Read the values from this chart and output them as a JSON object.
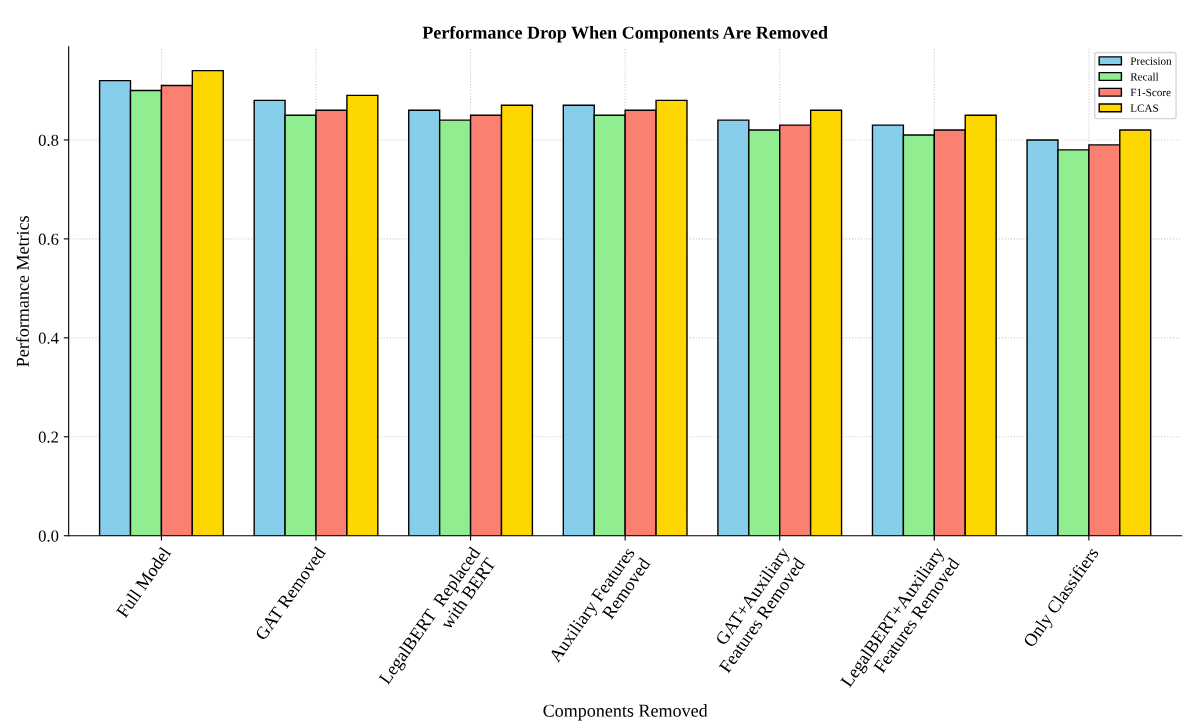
{
  "chart_data": {
    "type": "bar",
    "title": "Performance Drop When Components Are Removed",
    "xlabel": "Components Removed",
    "ylabel": "Performance Metrics",
    "categories": [
      "Full Model",
      "GAT Removed",
      "LegalBERT  Replaced\nwith BERT",
      "Auxiliary Features\nRemoved",
      "GAT+Auxiliary\nFeatures Removed",
      "LegalBERT+Auxiliary\nFeatures Removed",
      "Only Classifiers"
    ],
    "series": [
      {
        "name": "Precision",
        "color": "#87ceeb",
        "values": [
          0.92,
          0.88,
          0.86,
          0.87,
          0.84,
          0.83,
          0.8
        ]
      },
      {
        "name": "Recall",
        "color": "#90ee90",
        "values": [
          0.9,
          0.85,
          0.84,
          0.85,
          0.82,
          0.81,
          0.78
        ]
      },
      {
        "name": "F1-Score",
        "color": "#fa8072",
        "values": [
          0.91,
          0.86,
          0.85,
          0.86,
          0.83,
          0.82,
          0.79
        ]
      },
      {
        "name": "LCAS",
        "color": "#ffd700",
        "values": [
          0.94,
          0.89,
          0.87,
          0.88,
          0.86,
          0.85,
          0.82
        ]
      }
    ],
    "ylim": [
      0,
      0.988
    ],
    "yticks": [
      {
        "value": 0,
        "label": "0.0"
      },
      0.2,
      0.4,
      0.6,
      0.8
    ],
    "grid": true,
    "legend": "top right"
  }
}
